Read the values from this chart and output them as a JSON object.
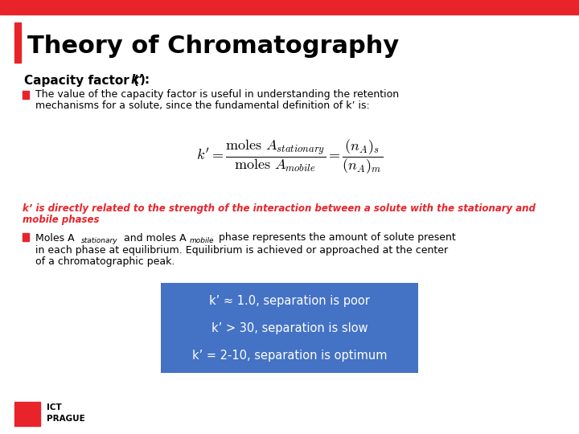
{
  "title": "Theory of Chromatography",
  "title_color": "#000000",
  "title_fontsize": 22,
  "top_bar_color": "#E8242A",
  "left_bar_color": "#E8242A",
  "bg_color": "#FFFFFF",
  "bullet1_line1": "The value of the capacity factor is useful in understanding the retention",
  "bullet1_line2": "mechanisms for a solute, since the fundamental definition of k’ is:",
  "italic_line1": "k’ is directly related to the strength of the interaction between a solute with the stationary and",
  "italic_line2": "mobile phases",
  "bullet2_line3": "in each phase at equilibrium. Equilibrium is achieved or approached at the center",
  "bullet2_line4": "of a chromatographic peak.",
  "box_line1": "k’ ≈ 1.0, separation is poor",
  "box_line2": "k’ > 30, separation is slow",
  "box_line3": "k’ = 2-10, separation is optimum",
  "box_color": "#4472C4",
  "box_text_color": "#FFFFFF",
  "red_text_color": "#E8242A",
  "ict_logo_color": "#E8242A",
  "formula_color": "#000000"
}
